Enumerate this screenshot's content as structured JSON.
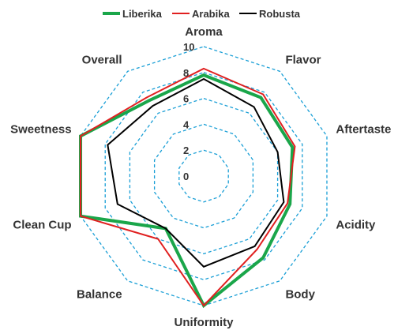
{
  "chart_data": {
    "type": "radar",
    "axes": [
      "Aroma",
      "Flavor",
      "Aftertaste",
      "Acidity",
      "Body",
      "Uniformity",
      "Balance",
      "Clean Cup",
      "Sweetness",
      "Overall"
    ],
    "rlim": [
      0,
      10
    ],
    "ticks": [
      "0",
      "2",
      "4",
      "6",
      "8",
      "10"
    ],
    "tick_values": [
      0,
      2,
      4,
      6,
      8,
      10
    ],
    "grid": true,
    "grid_color": "#1a9fd6",
    "legend_position": "top",
    "series": [
      {
        "name": "Liberika",
        "color": "#1aa64a",
        "values": [
          7.8,
          7.5,
          7.2,
          7.0,
          7.8,
          10,
          5.0,
          10,
          10,
          7.2
        ]
      },
      {
        "name": "Arabika",
        "color": "#e02020",
        "values": [
          8.3,
          7.8,
          7.4,
          6.8,
          7.0,
          10,
          6.0,
          10,
          10,
          7.5
        ]
      },
      {
        "name": "Robusta",
        "color": "#000000",
        "values": [
          7.5,
          6.6,
          6.0,
          6.5,
          6.7,
          7.0,
          5.0,
          7.0,
          7.8,
          6.7
        ]
      }
    ]
  }
}
